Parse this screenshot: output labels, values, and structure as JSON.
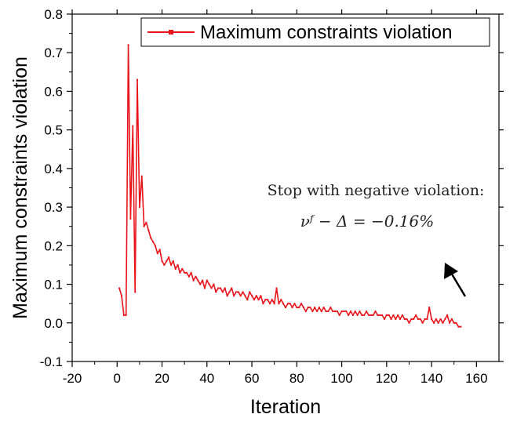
{
  "chart_data": {
    "type": "line",
    "title": "",
    "xlabel": "Iteration",
    "ylabel": "Maximum constraints violation",
    "xlim": [
      -20,
      170
    ],
    "ylim": [
      -0.1,
      0.8
    ],
    "xticks": [
      -20,
      0,
      20,
      40,
      60,
      80,
      100,
      120,
      140,
      160
    ],
    "yticks": [
      -0.1,
      0.0,
      0.1,
      0.2,
      0.3,
      0.4,
      0.5,
      0.6,
      0.7,
      0.8
    ],
    "xtick_labels": [
      "-20",
      "0",
      "20",
      "40",
      "60",
      "80",
      "100",
      "120",
      "140",
      "160"
    ],
    "ytick_labels": [
      "-0.1",
      "0.0",
      "0.1",
      "0.2",
      "0.3",
      "0.4",
      "0.5",
      "0.6",
      "0.7",
      "0.8"
    ],
    "grid": false,
    "legend": {
      "position": "top-right",
      "entries": [
        "Maximum constraints violation"
      ]
    },
    "series": [
      {
        "name": "Maximum constraints violation",
        "color": "#e8141a",
        "x": [
          1,
          2,
          3,
          4,
          5,
          6,
          7,
          8,
          9,
          10,
          11,
          12,
          13,
          14,
          15,
          16,
          17,
          18,
          19,
          20,
          21,
          22,
          23,
          24,
          25,
          26,
          27,
          28,
          29,
          30,
          31,
          32,
          33,
          34,
          35,
          36,
          37,
          38,
          39,
          40,
          41,
          42,
          43,
          44,
          45,
          46,
          47,
          48,
          49,
          50,
          51,
          52,
          53,
          54,
          55,
          56,
          57,
          58,
          59,
          60,
          61,
          62,
          63,
          64,
          65,
          66,
          67,
          68,
          69,
          70,
          71,
          72,
          73,
          74,
          75,
          76,
          77,
          78,
          79,
          80,
          81,
          82,
          83,
          84,
          85,
          86,
          87,
          88,
          89,
          90,
          91,
          92,
          93,
          94,
          95,
          96,
          97,
          98,
          99,
          100,
          101,
          102,
          103,
          104,
          105,
          106,
          107,
          108,
          109,
          110,
          111,
          112,
          113,
          114,
          115,
          116,
          117,
          118,
          119,
          120,
          121,
          122,
          123,
          124,
          125,
          126,
          127,
          128,
          129,
          130,
          131,
          132,
          133,
          134,
          135,
          136,
          137,
          138,
          139,
          140,
          141,
          142,
          143,
          144,
          145,
          146,
          147,
          148,
          149,
          150,
          151,
          152,
          153
        ],
        "y": [
          0.09,
          0.07,
          0.02,
          0.02,
          0.72,
          0.27,
          0.51,
          0.08,
          0.63,
          0.3,
          0.38,
          0.25,
          0.26,
          0.24,
          0.22,
          0.21,
          0.2,
          0.18,
          0.19,
          0.16,
          0.15,
          0.16,
          0.17,
          0.15,
          0.16,
          0.14,
          0.15,
          0.13,
          0.14,
          0.13,
          0.13,
          0.12,
          0.13,
          0.11,
          0.12,
          0.11,
          0.1,
          0.11,
          0.09,
          0.11,
          0.1,
          0.09,
          0.1,
          0.08,
          0.09,
          0.09,
          0.08,
          0.09,
          0.07,
          0.08,
          0.09,
          0.07,
          0.08,
          0.08,
          0.07,
          0.08,
          0.07,
          0.06,
          0.08,
          0.07,
          0.06,
          0.07,
          0.06,
          0.07,
          0.05,
          0.06,
          0.06,
          0.05,
          0.06,
          0.05,
          0.09,
          0.05,
          0.06,
          0.05,
          0.04,
          0.05,
          0.05,
          0.04,
          0.05,
          0.04,
          0.04,
          0.05,
          0.04,
          0.03,
          0.04,
          0.04,
          0.03,
          0.04,
          0.03,
          0.04,
          0.03,
          0.04,
          0.03,
          0.03,
          0.04,
          0.03,
          0.03,
          0.03,
          0.02,
          0.03,
          0.03,
          0.03,
          0.02,
          0.03,
          0.02,
          0.03,
          0.02,
          0.03,
          0.02,
          0.02,
          0.03,
          0.02,
          0.02,
          0.02,
          0.03,
          0.02,
          0.02,
          0.02,
          0.01,
          0.02,
          0.02,
          0.01,
          0.02,
          0.01,
          0.02,
          0.01,
          0.02,
          0.01,
          0.01,
          0.0,
          0.01,
          0.01,
          0.02,
          0.01,
          0.01,
          0.0,
          0.01,
          0.01,
          0.04,
          0.01,
          0.0,
          0.01,
          0.0,
          0.01,
          0.0,
          0.01,
          0.02,
          0.0,
          0.01,
          0.0,
          0.0,
          -0.01,
          -0.01
        ]
      }
    ],
    "annotations": [
      {
        "text": "Stop with negative violation:"
      },
      {
        "text": "νᶠ − Δ = −0.16%"
      }
    ],
    "arrow": {
      "direction": "up-left"
    }
  }
}
